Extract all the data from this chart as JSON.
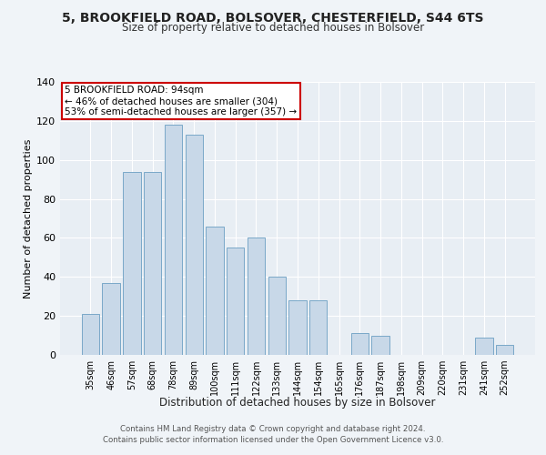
{
  "title": "5, BROOKFIELD ROAD, BOLSOVER, CHESTERFIELD, S44 6TS",
  "subtitle": "Size of property relative to detached houses in Bolsover",
  "xlabel": "Distribution of detached houses by size in Bolsover",
  "ylabel": "Number of detached properties",
  "categories": [
    "35sqm",
    "46sqm",
    "57sqm",
    "68sqm",
    "78sqm",
    "89sqm",
    "100sqm",
    "111sqm",
    "122sqm",
    "133sqm",
    "144sqm",
    "154sqm",
    "165sqm",
    "176sqm",
    "187sqm",
    "198sqm",
    "209sqm",
    "220sqm",
    "231sqm",
    "241sqm",
    "252sqm"
  ],
  "values": [
    21,
    37,
    94,
    94,
    118,
    113,
    66,
    55,
    60,
    40,
    28,
    28,
    0,
    11,
    10,
    0,
    0,
    0,
    0,
    9,
    5
  ],
  "bar_color": "#c8d8e8",
  "bar_edge_color": "#7aa8c8",
  "annotation_lines": [
    "5 BROOKFIELD ROAD: 94sqm",
    "← 46% of detached houses are smaller (304)",
    "53% of semi-detached houses are larger (357) →"
  ],
  "annotation_box_color": "#ffffff",
  "annotation_border_color": "#cc0000",
  "bg_color": "#f0f4f8",
  "plot_bg_color": "#e8eef4",
  "footer_line1": "Contains HM Land Registry data © Crown copyright and database right 2024.",
  "footer_line2": "Contains public sector information licensed under the Open Government Licence v3.0.",
  "ylim": [
    0,
    140
  ],
  "yticks": [
    0,
    20,
    40,
    60,
    80,
    100,
    120,
    140
  ]
}
